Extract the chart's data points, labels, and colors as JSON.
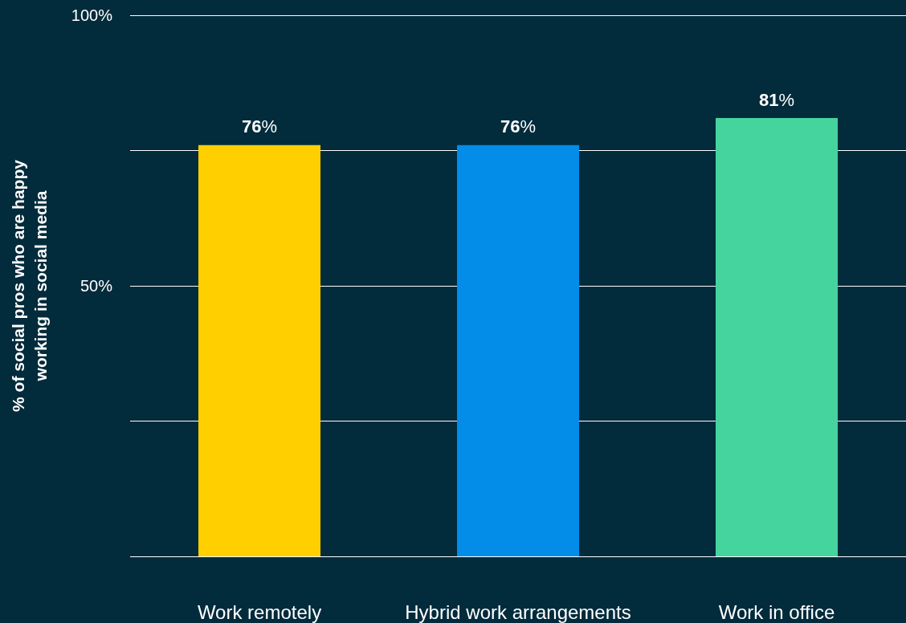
{
  "chart_data": {
    "type": "bar",
    "ylabel": "% of social pros who are happy\nworking in social media",
    "categories": [
      "Work remotely",
      "Hybrid work arrangements",
      "Work in office"
    ],
    "values": [
      76,
      76,
      81
    ],
    "colors": [
      "#ffcf00",
      "#038de9",
      "#45d49e"
    ],
    "value_labels": [
      "76%",
      "76%",
      "81%"
    ],
    "ylim": [
      0,
      100
    ],
    "yticks": [
      {
        "value": 0,
        "label": null
      },
      {
        "value": 25,
        "label": null
      },
      {
        "value": 50,
        "label": "50%"
      },
      {
        "value": 75,
        "label": null
      },
      {
        "value": 100,
        "label": "100%"
      }
    ],
    "grid": "y"
  }
}
